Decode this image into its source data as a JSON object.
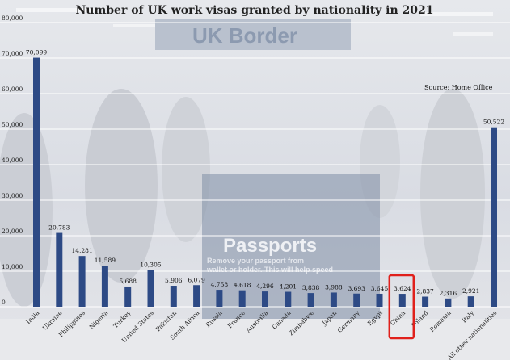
{
  "chart_data": {
    "type": "bar",
    "title": "Number of UK work visas granted by nationality in 2021",
    "source": "Source: Home Office",
    "categories": [
      "India",
      "Ukraine",
      "Philippines",
      "Nigeria",
      "Turkey",
      "United States",
      "Pakistan",
      "South Africa",
      "Russia",
      "France",
      "Australia",
      "Canada",
      "Zimbabwe",
      "Japan",
      "Germany",
      "Egypt",
      "China",
      "Poland",
      "Romania",
      "Italy",
      "All other nationalities"
    ],
    "value_labels": [
      "70,099",
      "20,783",
      "14,281",
      "11,589",
      "5,688",
      "10,305",
      "5,906",
      "6,079",
      "4,758",
      "4,618",
      "4,296",
      "4,201",
      "3,838",
      "3,988",
      "3,693",
      "3,645",
      "3,624",
      "2,837",
      "2,316",
      "2,921",
      "50,522"
    ],
    "values": [
      70099,
      20783,
      14281,
      11589,
      5688,
      10305,
      5906,
      6079,
      4758,
      4618,
      4296,
      4201,
      3838,
      3988,
      3693,
      3645,
      3624,
      2837,
      2316,
      2921,
      50522
    ],
    "ylim": [
      0,
      80000
    ],
    "yticks": [
      0,
      10000,
      20000,
      30000,
      40000,
      50000,
      60000,
      70000,
      80000
    ],
    "ytick_labels": [
      "0",
      "10,000",
      "20,000",
      "30,000",
      "40,000",
      "50,000",
      "60,000",
      "70,000",
      "80,000"
    ],
    "grid": true,
    "highlighted_category": "China",
    "colors": {
      "bar": "#2d4a85",
      "grid": "#ffffff",
      "highlight_box": "#e0201b",
      "background": "#dfe2e8"
    }
  },
  "background_photo": {
    "sign_top": "UK Border",
    "sign_main": "Passports",
    "sign_sub_1": "Remove your passport from",
    "sign_sub_2": "wallet or holder. This will help speed"
  }
}
